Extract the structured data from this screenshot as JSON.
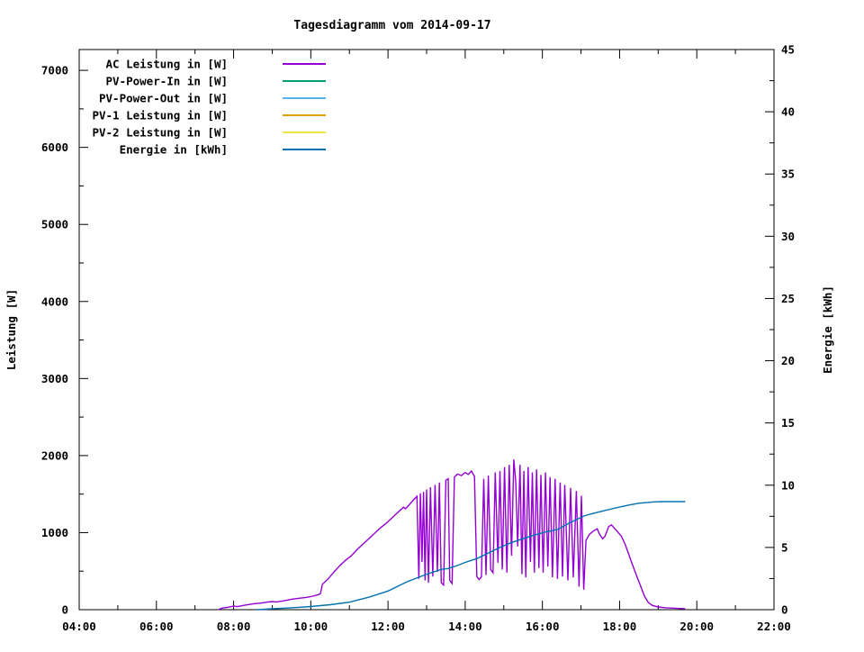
{
  "chart_data": {
    "type": "line",
    "title": "Tagesdiagramm vom 2014-09-17",
    "grid": false,
    "background_color": "#ffffff",
    "border_color": "#000000",
    "legend": {
      "position": "top-left-inside"
    },
    "x_axis": {
      "unit": "time",
      "range_hours": [
        4,
        22
      ],
      "major_ticks": [
        {
          "hour": 4,
          "label": "04:00"
        },
        {
          "hour": 6,
          "label": "06:00"
        },
        {
          "hour": 8,
          "label": "08:00"
        },
        {
          "hour": 10,
          "label": "10:00"
        },
        {
          "hour": 12,
          "label": "12:00"
        },
        {
          "hour": 14,
          "label": "14:00"
        },
        {
          "hour": 16,
          "label": "16:00"
        },
        {
          "hour": 18,
          "label": "18:00"
        },
        {
          "hour": 20,
          "label": "20:00"
        },
        {
          "hour": 22,
          "label": "22:00"
        }
      ],
      "minor_tick_hours": [
        5,
        7,
        9,
        11,
        13,
        15,
        17,
        19,
        21
      ]
    },
    "left_axis": {
      "title": "Leistung [W]",
      "range": [
        0,
        7270
      ],
      "major_ticks": [
        {
          "value": 0,
          "label": "0"
        },
        {
          "value": 1000,
          "label": "1000"
        },
        {
          "value": 2000,
          "label": "2000"
        },
        {
          "value": 3000,
          "label": "3000"
        },
        {
          "value": 4000,
          "label": "4000"
        },
        {
          "value": 5000,
          "label": "5000"
        },
        {
          "value": 6000,
          "label": "6000"
        },
        {
          "value": 7000,
          "label": "7000"
        }
      ],
      "minor_tick_values": [
        500,
        1500,
        2500,
        3500,
        4500,
        5500,
        6500
      ]
    },
    "right_axis": {
      "title": "Energie [kWh]",
      "range": [
        0,
        45
      ],
      "major_ticks": [
        {
          "value": 0,
          "label": "0"
        },
        {
          "value": 5,
          "label": "5"
        },
        {
          "value": 10,
          "label": "10"
        },
        {
          "value": 15,
          "label": "15"
        },
        {
          "value": 20,
          "label": "20"
        },
        {
          "value": 25,
          "label": "25"
        },
        {
          "value": 30,
          "label": "30"
        },
        {
          "value": 35,
          "label": "35"
        },
        {
          "value": 40,
          "label": "40"
        },
        {
          "value": 45,
          "label": "45"
        }
      ],
      "minor_tick_values": [
        2.5,
        7.5,
        12.5,
        17.5,
        22.5,
        27.5,
        32.5,
        37.5,
        42.5
      ]
    },
    "series": [
      {
        "name": "AC Leistung in [W]",
        "color": "#9400D3",
        "axis": "left",
        "points": [
          [
            7.6,
            0
          ],
          [
            7.7,
            20
          ],
          [
            7.85,
            30
          ],
          [
            8.0,
            45
          ],
          [
            8.1,
            40
          ],
          [
            8.3,
            60
          ],
          [
            8.5,
            75
          ],
          [
            8.7,
            85
          ],
          [
            8.9,
            100
          ],
          [
            9.0,
            105
          ],
          [
            9.1,
            100
          ],
          [
            9.3,
            115
          ],
          [
            9.5,
            135
          ],
          [
            9.7,
            148
          ],
          [
            9.9,
            160
          ],
          [
            10.05,
            175
          ],
          [
            10.2,
            195
          ],
          [
            10.25,
            210
          ],
          [
            10.3,
            330
          ],
          [
            10.45,
            400
          ],
          [
            10.6,
            490
          ],
          [
            10.75,
            570
          ],
          [
            10.9,
            640
          ],
          [
            11.05,
            700
          ],
          [
            11.2,
            780
          ],
          [
            11.35,
            850
          ],
          [
            11.5,
            920
          ],
          [
            11.65,
            990
          ],
          [
            11.8,
            1060
          ],
          [
            11.95,
            1120
          ],
          [
            12.1,
            1190
          ],
          [
            12.25,
            1260
          ],
          [
            12.4,
            1330
          ],
          [
            12.45,
            1310
          ],
          [
            12.55,
            1360
          ],
          [
            12.65,
            1420
          ],
          [
            12.75,
            1470
          ],
          [
            12.8,
            400
          ],
          [
            12.84,
            1510
          ],
          [
            12.88,
            620
          ],
          [
            12.92,
            1530
          ],
          [
            12.96,
            380
          ],
          [
            13.0,
            1560
          ],
          [
            13.05,
            350
          ],
          [
            13.1,
            1590
          ],
          [
            13.16,
            430
          ],
          [
            13.22,
            1620
          ],
          [
            13.28,
            490
          ],
          [
            13.33,
            1650
          ],
          [
            13.38,
            350
          ],
          [
            13.44,
            320
          ],
          [
            13.5,
            1680
          ],
          [
            13.56,
            1700
          ],
          [
            13.6,
            380
          ],
          [
            13.66,
            340
          ],
          [
            13.72,
            1720
          ],
          [
            13.8,
            1760
          ],
          [
            13.9,
            1740
          ],
          [
            14.0,
            1780
          ],
          [
            14.08,
            1755
          ],
          [
            14.16,
            1800
          ],
          [
            14.24,
            1730
          ],
          [
            14.3,
            430
          ],
          [
            14.36,
            390
          ],
          [
            14.42,
            425
          ],
          [
            14.48,
            1700
          ],
          [
            14.54,
            450
          ],
          [
            14.6,
            1740
          ],
          [
            14.66,
            520
          ],
          [
            14.72,
            480
          ],
          [
            14.78,
            1780
          ],
          [
            14.85,
            610
          ],
          [
            14.9,
            1800
          ],
          [
            14.96,
            520
          ],
          [
            15.02,
            1850
          ],
          [
            15.08,
            480
          ],
          [
            15.14,
            1880
          ],
          [
            15.2,
            700
          ],
          [
            15.26,
            1950
          ],
          [
            15.31,
            1650
          ],
          [
            15.36,
            820
          ],
          [
            15.42,
            1880
          ],
          [
            15.47,
            460
          ],
          [
            15.52,
            1800
          ],
          [
            15.57,
            420
          ],
          [
            15.63,
            1850
          ],
          [
            15.69,
            620
          ],
          [
            15.74,
            1780
          ],
          [
            15.79,
            480
          ],
          [
            15.85,
            1820
          ],
          [
            15.91,
            540
          ],
          [
            15.96,
            1750
          ],
          [
            16.02,
            480
          ],
          [
            16.08,
            1780
          ],
          [
            16.14,
            560
          ],
          [
            16.2,
            1720
          ],
          [
            16.26,
            420
          ],
          [
            16.33,
            1700
          ],
          [
            16.39,
            400
          ],
          [
            16.46,
            1650
          ],
          [
            16.52,
            430
          ],
          [
            16.58,
            1620
          ],
          [
            16.66,
            380
          ],
          [
            16.73,
            1580
          ],
          [
            16.8,
            420
          ],
          [
            16.88,
            1540
          ],
          [
            16.95,
            300
          ],
          [
            17.01,
            1480
          ],
          [
            17.07,
            260
          ],
          [
            17.13,
            900
          ],
          [
            17.22,
            980
          ],
          [
            17.32,
            1020
          ],
          [
            17.42,
            1050
          ],
          [
            17.48,
            980
          ],
          [
            17.56,
            920
          ],
          [
            17.62,
            950
          ],
          [
            17.72,
            1080
          ],
          [
            17.79,
            1100
          ],
          [
            17.86,
            1060
          ],
          [
            17.95,
            1010
          ],
          [
            18.05,
            950
          ],
          [
            18.15,
            840
          ],
          [
            18.25,
            700
          ],
          [
            18.35,
            560
          ],
          [
            18.45,
            430
          ],
          [
            18.55,
            300
          ],
          [
            18.65,
            170
          ],
          [
            18.75,
            90
          ],
          [
            18.85,
            55
          ],
          [
            19.0,
            35
          ],
          [
            19.2,
            25
          ],
          [
            19.4,
            20
          ],
          [
            19.55,
            15
          ],
          [
            19.7,
            12
          ]
        ]
      },
      {
        "name": "PV-Power-In in [W]",
        "color": "#009E73",
        "axis": "left",
        "points": []
      },
      {
        "name": "PV-Power-Out in [W]",
        "color": "#56B4E9",
        "axis": "left",
        "points": []
      },
      {
        "name": "PV-1 Leistung in [W]",
        "color": "#E69F00",
        "axis": "left",
        "points": []
      },
      {
        "name": "PV-2 Leistung in [W]",
        "color": "#F0E442",
        "axis": "left",
        "points": []
      },
      {
        "name": "Energie in [kWh]",
        "color": "#0072B2",
        "axis": "right",
        "points": [
          [
            8.6,
            0
          ],
          [
            9.0,
            0.07
          ],
          [
            9.5,
            0.15
          ],
          [
            10.0,
            0.25
          ],
          [
            10.5,
            0.4
          ],
          [
            11.0,
            0.6
          ],
          [
            11.5,
            1.0
          ],
          [
            12.0,
            1.5
          ],
          [
            12.5,
            2.25
          ],
          [
            13.0,
            2.85
          ],
          [
            13.4,
            3.25
          ],
          [
            13.55,
            3.3
          ],
          [
            13.8,
            3.55
          ],
          [
            14.0,
            3.8
          ],
          [
            14.3,
            4.1
          ],
          [
            14.6,
            4.55
          ],
          [
            14.9,
            5.0
          ],
          [
            15.2,
            5.4
          ],
          [
            15.5,
            5.7
          ],
          [
            15.8,
            6.0
          ],
          [
            16.1,
            6.25
          ],
          [
            16.4,
            6.45
          ],
          [
            16.6,
            6.8
          ],
          [
            16.87,
            7.23
          ],
          [
            17.1,
            7.55
          ],
          [
            17.33,
            7.75
          ],
          [
            17.6,
            7.95
          ],
          [
            17.8,
            8.1
          ],
          [
            18.05,
            8.28
          ],
          [
            18.27,
            8.42
          ],
          [
            18.5,
            8.55
          ],
          [
            18.73,
            8.62
          ],
          [
            18.9,
            8.66
          ],
          [
            19.1,
            8.68
          ],
          [
            19.7,
            8.68
          ]
        ]
      }
    ]
  }
}
